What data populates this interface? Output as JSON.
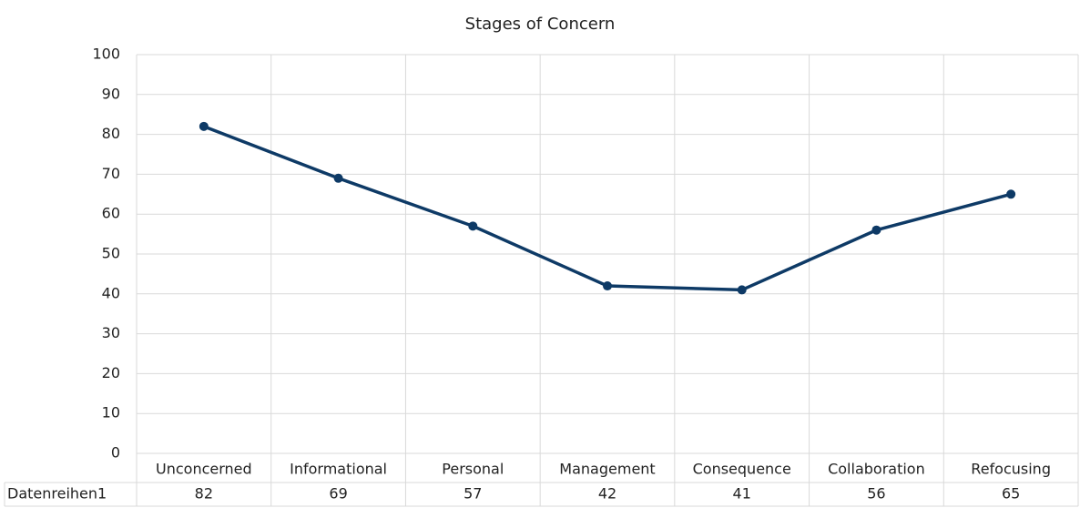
{
  "chart_data": {
    "type": "line",
    "title": "Stages of Concern",
    "categories": [
      "Unconcerned",
      "Informational",
      "Personal",
      "Management",
      "Consequence",
      "Collaboration",
      "Refocusing"
    ],
    "series": [
      {
        "name": "Datenreihen1",
        "color": "#0e3a66",
        "values": [
          82,
          69,
          57,
          42,
          41,
          56,
          65
        ]
      }
    ],
    "ylim": [
      0,
      100
    ],
    "yticks": [
      0,
      10,
      20,
      30,
      40,
      50,
      60,
      70,
      80,
      90,
      100
    ],
    "grid": true,
    "data_table": true
  }
}
